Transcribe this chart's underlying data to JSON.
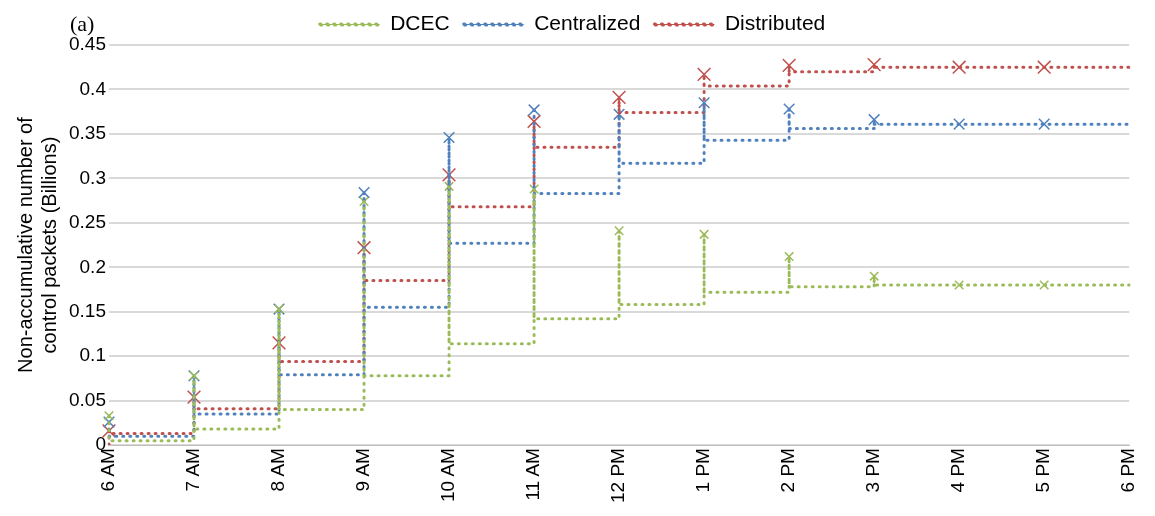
{
  "chart_data": {
    "type": "line",
    "ylabel": "Non-accumulative number of control packets (Billions)",
    "annotations": [
      "(a)"
    ],
    "categories": [
      "6 AM",
      "7 AM",
      "8 AM",
      "9 AM",
      "10 AM",
      "11 AM",
      "12 PM",
      "1 PM",
      "2 PM",
      "3 PM",
      "4 PM",
      "5 PM",
      "6 PM"
    ],
    "ylim": [
      0,
      0.45
    ],
    "yticks": [
      0,
      0.05,
      0.1,
      0.15,
      0.2,
      0.25,
      0.3,
      0.35,
      0.4,
      0.45
    ],
    "grid": "y",
    "legend": "top",
    "line_style": "dotted",
    "series": [
      {
        "name": "DCEC",
        "color": "#9bbb59",
        "marker": "none",
        "x": [
          "6 AM",
          "6 AM",
          "7 AM",
          "7 AM",
          "7 AM",
          "8 AM",
          "8 AM",
          "8 AM",
          "9 AM",
          "9 AM",
          "9 AM",
          "10 AM",
          "10 AM",
          "10 AM",
          "11 AM",
          "11 AM",
          "11 AM",
          "12 PM",
          "12 PM",
          "12 PM",
          "1 PM",
          "1 PM",
          "1 PM",
          "2 PM",
          "2 PM",
          "2 PM",
          "3 PM",
          "3 PM",
          "3 PM",
          "6 PM"
        ],
        "values": [
          0.033,
          0.005,
          0.005,
          0.078,
          0.018,
          0.018,
          0.153,
          0.04,
          0.04,
          0.274,
          0.078,
          0.078,
          0.291,
          0.114,
          0.114,
          0.288,
          0.142,
          0.142,
          0.241,
          0.158,
          0.158,
          0.237,
          0.172,
          0.172,
          0.212,
          0.178,
          0.178,
          0.19,
          0.18,
          0.18
        ]
      },
      {
        "name": "Centralized",
        "color": "#4f81bd",
        "marker": "none",
        "x": [
          "6 AM",
          "6 AM",
          "7 AM",
          "7 AM",
          "7 AM",
          "8 AM",
          "8 AM",
          "8 AM",
          "9 AM",
          "9 AM",
          "9 AM",
          "10 AM",
          "10 AM",
          "10 AM",
          "11 AM",
          "11 AM",
          "11 AM",
          "12 PM",
          "12 PM",
          "12 PM",
          "1 PM",
          "1 PM",
          "1 PM",
          "2 PM",
          "2 PM",
          "2 PM",
          "3 PM",
          "3 PM",
          "3 PM",
          "6 PM"
        ],
        "values": [
          0.026,
          0.01,
          0.01,
          0.078,
          0.035,
          0.035,
          0.153,
          0.079,
          0.079,
          0.284,
          0.155,
          0.155,
          0.346,
          0.227,
          0.227,
          0.377,
          0.283,
          0.283,
          0.372,
          0.317,
          0.317,
          0.385,
          0.343,
          0.343,
          0.378,
          0.356,
          0.356,
          0.366,
          0.361,
          0.361
        ]
      },
      {
        "name": "Distributed",
        "color": "#c0504d",
        "marker": "none",
        "x": [
          "6 AM",
          "6 AM",
          "6 AM",
          "7 AM",
          "7 AM",
          "7 AM",
          "8 AM",
          "8 AM",
          "8 AM",
          "9 AM",
          "9 AM",
          "9 AM",
          "10 AM",
          "10 AM",
          "10 AM",
          "11 AM",
          "11 AM",
          "11 AM",
          "12 PM",
          "12 PM",
          "12 PM",
          "1 PM",
          "1 PM",
          "1 PM",
          "2 PM",
          "2 PM",
          "2 PM",
          "3 PM",
          "3 PM",
          "3 PM",
          "6 PM"
        ],
        "values": [
          0,
          0.016,
          0.013,
          0.013,
          0.054,
          0.041,
          0.041,
          0.115,
          0.094,
          0.094,
          0.222,
          0.185,
          0.185,
          0.304,
          0.268,
          0.268,
          0.364,
          0.335,
          0.335,
          0.391,
          0.374,
          0.374,
          0.417,
          0.404,
          0.404,
          0.427,
          0.42,
          0.42,
          0.428,
          0.425,
          0.425
        ]
      },
      {
        "type": "scatter",
        "color": "#9bbb59",
        "marker": "cross",
        "values": [
          0.033,
          0.078,
          0.153,
          0.274,
          0.291,
          0.288,
          0.241,
          0.237,
          0.212,
          0.19,
          0.18,
          0.18,
          null
        ]
      },
      {
        "type": "scatter",
        "color": "#4f81bd",
        "marker": "cross",
        "values": [
          0.026,
          0.078,
          0.153,
          0.284,
          0.346,
          0.377,
          0.372,
          0.385,
          0.378,
          0.366,
          0.361,
          0.361,
          null
        ]
      },
      {
        "type": "scatter",
        "color": "#c0504d",
        "marker": "cross",
        "values": [
          0.016,
          0.054,
          0.115,
          0.222,
          0.304,
          0.364,
          0.391,
          0.417,
          0.427,
          0.428,
          0.425,
          0.425,
          null
        ]
      }
    ]
  }
}
